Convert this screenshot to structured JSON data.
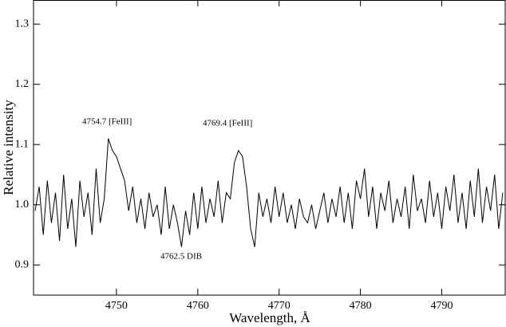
{
  "chart_data": {
    "type": "line",
    "x_label": "Wavelength, Å",
    "y_label": "Relative intensity",
    "annotations": [
      "4754.7 [FeIII]",
      "4769.4 [FeIII]",
      "4762.5 DIB"
    ],
    "x": [
      4740,
      4740.5,
      4741,
      4741.5,
      4742,
      4742.5,
      4743,
      4743.5,
      4744,
      4744.5,
      4745,
      4745.5,
      4746,
      4746.5,
      4747,
      4747.5,
      4748,
      4748.5,
      4749,
      4749.5,
      4750,
      4750.5,
      4751,
      4751.5,
      4752,
      4752.5,
      4753,
      4753.5,
      4754,
      4754.5,
      4755,
      4755.5,
      4756,
      4756.5,
      4757,
      4757.5,
      4758,
      4758.5,
      4759,
      4759.5,
      4760,
      4760.5,
      4761,
      4761.5,
      4762,
      4762.5,
      4763,
      4763.5,
      4764,
      4764.5,
      4765,
      4765.5,
      4766,
      4766.5,
      4767,
      4767.5,
      4768,
      4768.5,
      4769,
      4769.5,
      4770,
      4770.5,
      4771,
      4771.5,
      4772,
      4772.5,
      4773,
      4773.5,
      4774,
      4774.5,
      4775,
      4775.5,
      4776,
      4776.5,
      4777,
      4777.5,
      4778,
      4778.5,
      4779,
      4779.5,
      4780,
      4780.5,
      4781,
      4781.5,
      4782,
      4782.5,
      4783,
      4783.5,
      4784,
      4784.5,
      4785,
      4785.5,
      4786,
      4786.5,
      4787,
      4787.5,
      4788,
      4788.5,
      4789,
      4789.5,
      4790,
      4790.5,
      4791,
      4791.5,
      4792,
      4792.5,
      4793,
      4793.5,
      4794,
      4794.5,
      4795,
      4795.5,
      4796,
      4796.5,
      4797,
      4797.5
    ],
    "series": [
      {
        "color": "#000000",
        "values": [
          0.99,
          1.03,
          0.95,
          1.04,
          0.97,
          1.02,
          0.94,
          1.05,
          0.96,
          1.01,
          0.93,
          1.04,
          0.98,
          1.02,
          0.95,
          1.06,
          0.97,
          1.01,
          1.11,
          1.09,
          1.08,
          1.06,
          1.04,
          0.99,
          1.03,
          0.97,
          1.01,
          0.96,
          1.02,
          0.98,
          1.0,
          0.95,
          1.03,
          0.96,
          1.0,
          0.97,
          0.93,
          0.99,
          0.95,
          1.02,
          0.96,
          1.03,
          0.97,
          1.01,
          0.98,
          1.04,
          0.97,
          1.02,
          1.01,
          1.07,
          1.09,
          1.08,
          1.03,
          0.96,
          0.93,
          1.02,
          0.98,
          1.01,
          0.97,
          1.03,
          0.98,
          1.02,
          0.97,
          1.0,
          0.96,
          1.01,
          0.98,
          0.97,
          1.0,
          0.96,
          0.99,
          1.02,
          0.97,
          1.01,
          0.98,
          1.03,
          0.97,
          1.02,
          0.96,
          1.04,
          1.01,
          1.06,
          0.98,
          1.03,
          0.96,
          1.02,
          0.99,
          1.04,
          0.97,
          1.01,
          0.98,
          1.03,
          0.96,
          1.05,
          0.99,
          1.01,
          0.97,
          1.04,
          0.98,
          1.02,
          0.96,
          1.03,
          0.99,
          1.05,
          0.97,
          1.02,
          0.96,
          1.04,
          0.98,
          1.06,
          0.97,
          1.03,
          0.99,
          1.05,
          0.96,
          1.02
        ]
      }
    ],
    "xlim": [
      4739.8,
      4797.8
    ],
    "ylim": [
      0.85,
      1.34
    ],
    "xticks": [
      4750,
      4760,
      4770,
      4780,
      4790
    ],
    "yticks": [
      0.9,
      {
        "value": 1,
        "label": "1.0"
      },
      1.1,
      1.2,
      1.3
    ]
  }
}
